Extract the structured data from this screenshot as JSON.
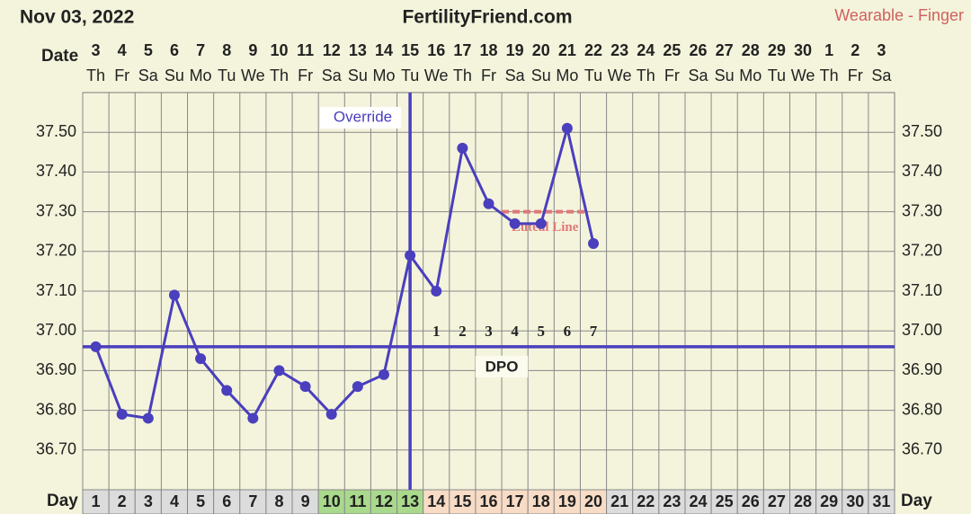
{
  "chart_data": {
    "type": "line",
    "date_label": "Nov 03, 2022",
    "site_title": "FertilityFriend.com",
    "source_label": "Wearable - Finger",
    "top_axis_label": "Date",
    "x_label": "Day",
    "categories": [
      "1",
      "2",
      "3",
      "4",
      "5",
      "6",
      "7",
      "8",
      "9",
      "10",
      "11",
      "12",
      "13",
      "14",
      "15",
      "16",
      "17",
      "18",
      "19",
      "20",
      "21",
      "22",
      "23",
      "24",
      "25",
      "26",
      "27",
      "28",
      "29",
      "30",
      "31"
    ],
    "dates": [
      "3",
      "4",
      "5",
      "6",
      "7",
      "8",
      "9",
      "10",
      "11",
      "12",
      "13",
      "14",
      "15",
      "16",
      "17",
      "18",
      "19",
      "20",
      "21",
      "22",
      "23",
      "24",
      "25",
      "26",
      "27",
      "28",
      "29",
      "30",
      "1",
      "2",
      "3"
    ],
    "weekdays": [
      "Th",
      "Fr",
      "Sa",
      "Su",
      "Mo",
      "Tu",
      "We",
      "Th",
      "Fr",
      "Sa",
      "Su",
      "Mo",
      "Tu",
      "We",
      "Th",
      "Fr",
      "Sa",
      "Su",
      "Mo",
      "Tu",
      "We",
      "Th",
      "Fr",
      "Sa",
      "Su",
      "Mo",
      "Tu",
      "We",
      "Th",
      "Fr",
      "Sa"
    ],
    "day_cell_colors": [
      "#dcdcdc",
      "#dcdcdc",
      "#dcdcdc",
      "#dcdcdc",
      "#dcdcdc",
      "#dcdcdc",
      "#dcdcdc",
      "#dcdcdc",
      "#dcdcdc",
      "#a9d98c",
      "#a9d98c",
      "#a9d98c",
      "#a9d98c",
      "#f8dcc6",
      "#f8dcc6",
      "#f8dcc6",
      "#f8dcc6",
      "#f8dcc6",
      "#f8dcc6",
      "#f8dcc6",
      "#dcdcdc",
      "#dcdcdc",
      "#dcdcdc",
      "#dcdcdc",
      "#dcdcdc",
      "#dcdcdc",
      "#dcdcdc",
      "#dcdcdc",
      "#dcdcdc",
      "#dcdcdc",
      "#dcdcdc"
    ],
    "series": [
      {
        "color": "#4a3fbd",
        "values": [
          36.96,
          36.79,
          36.78,
          37.09,
          36.93,
          36.85,
          36.78,
          36.9,
          36.86,
          36.79,
          36.86,
          36.89,
          37.19,
          37.1,
          37.46,
          37.32,
          37.27,
          37.27,
          37.51,
          37.22,
          null,
          null,
          null,
          null,
          null,
          null,
          null,
          null,
          null,
          null,
          null
        ]
      }
    ],
    "ylim": [
      36.6,
      37.6
    ],
    "yticks": [
      {
        "value": 36.7,
        "label": "36.70"
      },
      {
        "value": 36.8,
        "label": "36.80"
      },
      {
        "value": 36.9,
        "label": "36.90"
      },
      {
        "value": 37.0,
        "label": "37.00"
      },
      {
        "value": 37.1,
        "label": "37.10"
      },
      {
        "value": 37.2,
        "label": "37.20"
      },
      {
        "value": 37.3,
        "label": "37.30"
      },
      {
        "value": 37.4,
        "label": "37.40"
      },
      {
        "value": 37.5,
        "label": "37.50"
      }
    ],
    "grid": true,
    "coverline": 36.96,
    "ovulation_day": 13,
    "ovulation_label": "Override",
    "luteal_line": {
      "value": 37.3,
      "from_day": 16,
      "to_day": 19,
      "label": "Luteal Line",
      "color": "#e07878"
    },
    "dpo_labels": [
      "1",
      "2",
      "3",
      "4",
      "5",
      "6",
      "7"
    ],
    "dpo_start_day": 14,
    "dpo_title": "DPO"
  }
}
